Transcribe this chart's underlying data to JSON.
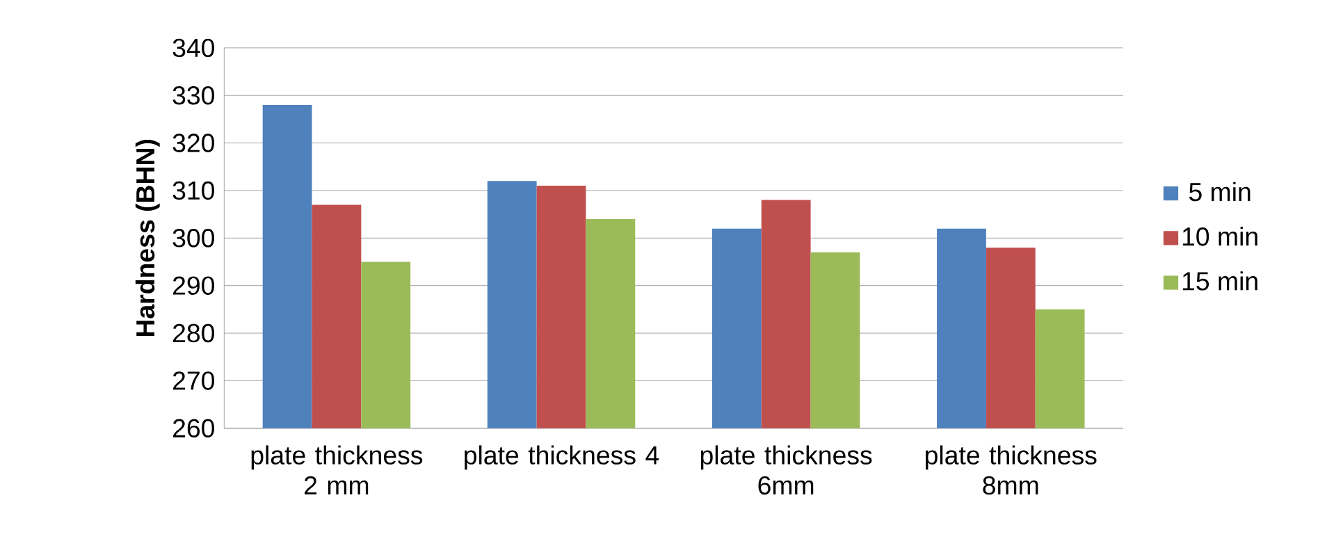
{
  "chart_data": {
    "type": "bar",
    "ylabel": "Hardness (BHN)",
    "categories": [
      "plate thickness 2 mm",
      "plate thickness 4",
      "plate thickness 6mm",
      "plate thickness 8mm"
    ],
    "series": [
      {
        "name": "5 min",
        "color": "#4f81bd",
        "values": [
          328,
          312,
          302,
          302
        ]
      },
      {
        "name": "10 min",
        "color": "#c0504d",
        "values": [
          307,
          311,
          308,
          298
        ]
      },
      {
        "name": "15 min",
        "color": "#9bbb59",
        "values": [
          295,
          304,
          297,
          285
        ]
      }
    ],
    "ylim": [
      260,
      340
    ],
    "yticks": [
      260,
      270,
      280,
      290,
      300,
      310,
      320,
      330,
      340
    ],
    "grid": "y",
    "legend": "right"
  }
}
